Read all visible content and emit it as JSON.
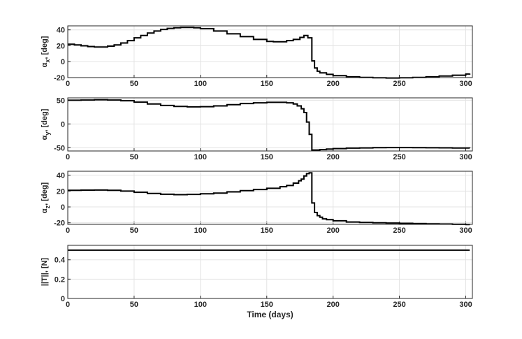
{
  "figure": {
    "xlabel": "Time (days)",
    "x_ticks": [
      "0",
      "50",
      "100",
      "150",
      "200",
      "250",
      "300"
    ]
  },
  "chart_data": [
    {
      "type": "line",
      "step": true,
      "grid": true,
      "ylabel": {
        "main": "α",
        "sub": "x",
        "rest": ", [deg]"
      },
      "xlim": [
        0,
        305
      ],
      "ylim": [
        -20,
        45
      ],
      "y_ticks": [
        "40",
        "20",
        "0",
        "-20"
      ],
      "x": [
        0,
        5,
        10,
        15,
        20,
        25,
        30,
        35,
        40,
        45,
        50,
        55,
        60,
        65,
        70,
        75,
        80,
        85,
        90,
        95,
        100,
        110,
        120,
        130,
        140,
        150,
        155,
        160,
        165,
        170,
        175,
        178,
        181,
        184,
        186,
        188,
        190,
        195,
        200,
        210,
        220,
        230,
        240,
        250,
        260,
        270,
        280,
        290,
        300,
        303
      ],
      "y": [
        22,
        21,
        20,
        19,
        18.5,
        18.5,
        19.5,
        21,
        23.5,
        26.5,
        30,
        33,
        36,
        38.5,
        40.5,
        41.8,
        42.5,
        43,
        43,
        42.5,
        41.5,
        38.5,
        35,
        31.5,
        28,
        25.5,
        25,
        25,
        26.5,
        28,
        30.5,
        33,
        30,
        1,
        -8,
        -12,
        -14,
        -16,
        -17.5,
        -19,
        -19.8,
        -20.3,
        -20.5,
        -20.3,
        -19.8,
        -19,
        -18,
        -17,
        -15.5,
        -15
      ]
    },
    {
      "type": "line",
      "step": true,
      "grid": true,
      "ylabel": {
        "main": "α",
        "sub": "y",
        "rest": ", [deg]"
      },
      "xlim": [
        0,
        305
      ],
      "ylim": [
        -57,
        55
      ],
      "y_ticks": [
        "50",
        "0",
        "-50"
      ],
      "x": [
        0,
        10,
        20,
        30,
        40,
        50,
        60,
        70,
        80,
        90,
        100,
        110,
        120,
        130,
        140,
        150,
        160,
        165,
        170,
        173,
        176,
        178,
        180,
        182,
        184,
        186,
        190,
        195,
        200,
        210,
        220,
        230,
        240,
        250,
        260,
        270,
        280,
        290,
        300,
        303
      ],
      "y": [
        50,
        50.5,
        51,
        50.5,
        49,
        46,
        42,
        39,
        37,
        36,
        36.5,
        38,
        40.5,
        43,
        44.5,
        45.5,
        45.5,
        44.5,
        42,
        38,
        32,
        24,
        4,
        -22,
        -55,
        -55,
        -54,
        -53,
        -52,
        -51,
        -50.5,
        -50,
        -49.8,
        -49.8,
        -50,
        -50.2,
        -50.4,
        -50.6,
        -50.8,
        -51
      ]
    },
    {
      "type": "line",
      "step": true,
      "grid": true,
      "ylabel": {
        "main": "α",
        "sub": "z",
        "rest": ", [deg]"
      },
      "xlim": [
        0,
        305
      ],
      "ylim": [
        -22,
        45
      ],
      "y_ticks": [
        "40",
        "20",
        "0",
        "-20"
      ],
      "x": [
        0,
        10,
        20,
        30,
        40,
        50,
        60,
        70,
        80,
        85,
        90,
        100,
        110,
        120,
        130,
        140,
        150,
        160,
        165,
        170,
        174,
        176,
        178,
        180,
        182,
        184,
        186,
        188,
        190,
        192,
        195,
        200,
        210,
        220,
        230,
        240,
        250,
        260,
        270,
        280,
        290,
        300,
        303
      ],
      "y": [
        21,
        21.2,
        21.3,
        21,
        20,
        18.5,
        17,
        16,
        15.5,
        15.5,
        15.8,
        16.5,
        17.5,
        19,
        20.5,
        22,
        23.5,
        25.5,
        27,
        30,
        33,
        35,
        39,
        42,
        43,
        5,
        -7,
        -11,
        -13,
        -15,
        -16,
        -17.5,
        -19,
        -19.5,
        -20,
        -20.3,
        -20.7,
        -21,
        -21.3,
        -21.6,
        -21.9,
        -22.2,
        -22.5
      ]
    },
    {
      "type": "line",
      "step": false,
      "grid": true,
      "ylabel": {
        "main": "||T||, [N]",
        "sub": "",
        "rest": ""
      },
      "xlim": [
        0,
        305
      ],
      "ylim": [
        0,
        0.55
      ],
      "y_ticks": [
        "0.4",
        "0.2",
        "0"
      ],
      "x": [
        0,
        303
      ],
      "y": [
        0.5,
        0.5
      ]
    }
  ]
}
